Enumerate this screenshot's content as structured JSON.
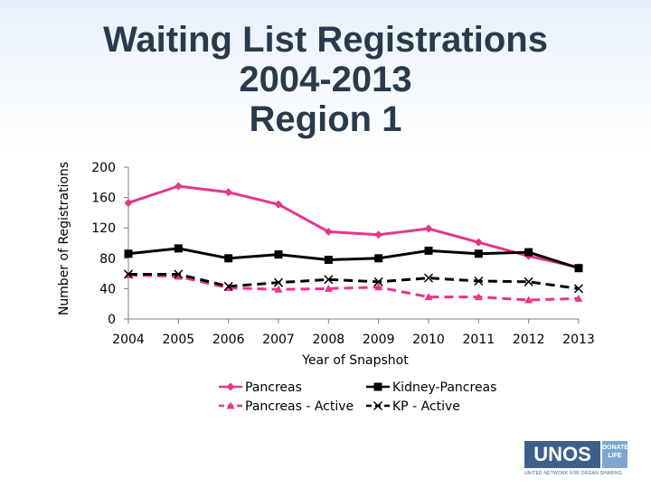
{
  "title": {
    "line1": "Waiting List Registrations",
    "line2": "2004-2013",
    "line3": "Region 1"
  },
  "chart_data": {
    "type": "line",
    "title": "Waiting List Registrations 2004-2013 Region 1",
    "xlabel": "Year of Snapshot",
    "ylabel": "Number of Registrations",
    "categories": [
      "2004",
      "2005",
      "2006",
      "2007",
      "2008",
      "2009",
      "2010",
      "2011",
      "2012",
      "2013"
    ],
    "ylim": [
      0,
      200
    ],
    "yticks": [
      0,
      40,
      80,
      120,
      160,
      200
    ],
    "grid": false,
    "legend_position": "bottom",
    "series": [
      {
        "name": "Pancreas",
        "values": [
          153,
          175,
          167,
          151,
          115,
          111,
          119,
          101,
          83,
          68
        ],
        "color": "#e8358a",
        "dash": false,
        "marker": "diamond"
      },
      {
        "name": "Kidney-Pancreas",
        "values": [
          86,
          93,
          80,
          85,
          78,
          80,
          90,
          86,
          88,
          67
        ],
        "color": "#000000",
        "dash": false,
        "marker": "square"
      },
      {
        "name": "Pancreas - Active",
        "values": [
          58,
          56,
          41,
          39,
          40,
          42,
          29,
          29,
          25,
          27
        ],
        "color": "#e8358a",
        "dash": true,
        "marker": "triangle"
      },
      {
        "name": "KP - Active",
        "values": [
          59,
          59,
          43,
          48,
          52,
          49,
          54,
          50,
          49,
          40
        ],
        "color": "#000000",
        "dash": true,
        "marker": "x"
      }
    ]
  },
  "logo": {
    "main": "UNOS",
    "side_top": "DONATE",
    "side_bottom": "LIFE",
    "subtitle": "UNITED NETWORK FOR ORGAN SHARING"
  }
}
